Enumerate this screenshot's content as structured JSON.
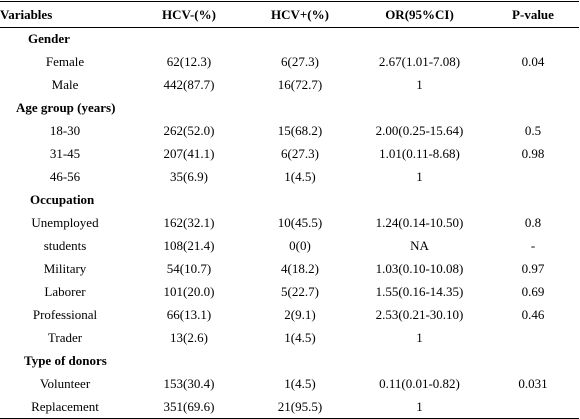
{
  "headers": {
    "variables": "Variables",
    "hcv_neg": "HCV-(%)",
    "hcv_pos": "HCV+(%)",
    "or_ci": "OR(95%CI)",
    "p_value": "P-value"
  },
  "sections": [
    {
      "title": "Gender",
      "rows": [
        {
          "label": "Female",
          "hcv_neg": "62(12.3)",
          "hcv_pos": "6(27.3)",
          "or_ci": "2.67(1.01-7.08)",
          "p": "0.04"
        },
        {
          "label": "Male",
          "hcv_neg": "442(87.7)",
          "hcv_pos": "16(72.7)",
          "or_ci": "1",
          "p": ""
        }
      ]
    },
    {
      "title": "Age group (years)",
      "rows": [
        {
          "label": "18-30",
          "hcv_neg": "262(52.0)",
          "hcv_pos": "15(68.2)",
          "or_ci": "2.00(0.25-15.64)",
          "p": "0.5"
        },
        {
          "label": "31-45",
          "hcv_neg": "207(41.1)",
          "hcv_pos": "6(27.3)",
          "or_ci": "1.01(0.11-8.68)",
          "p": "0.98"
        },
        {
          "label": "46-56",
          "hcv_neg": "35(6.9)",
          "hcv_pos": "1(4.5)",
          "or_ci": "1",
          "p": ""
        }
      ]
    },
    {
      "title": "Occupation",
      "rows": [
        {
          "label": "Unemployed",
          "hcv_neg": "162(32.1)",
          "hcv_pos": "10(45.5)",
          "or_ci": "1.24(0.14-10.50)",
          "p": "0.8"
        },
        {
          "label": "students",
          "hcv_neg": "108(21.4)",
          "hcv_pos": "0(0)",
          "or_ci": "NA",
          "p": "-"
        },
        {
          "label": "Military",
          "hcv_neg": "54(10.7)",
          "hcv_pos": "4(18.2)",
          "or_ci": "1.03(0.10-10.08)",
          "p": "0.97"
        },
        {
          "label": "Laborer",
          "hcv_neg": "101(20.0)",
          "hcv_pos": "5(22.7)",
          "or_ci": "1.55(0.16-14.35)",
          "p": "0.69"
        },
        {
          "label": "Professional",
          "hcv_neg": "66(13.1)",
          "hcv_pos": "2(9.1)",
          "or_ci": "2.53(0.21-30.10)",
          "p": "0.46"
        },
        {
          "label": "Trader",
          "hcv_neg": "13(2.6)",
          "hcv_pos": "1(4.5)",
          "or_ci": "1",
          "p": ""
        }
      ]
    },
    {
      "title": "Type of donors",
      "rows": [
        {
          "label": "Volunteer",
          "hcv_neg": "153(30.4)",
          "hcv_pos": "1(4.5)",
          "or_ci": "0.11(0.01-0.82)",
          "p": "0.031"
        },
        {
          "label": "Replacement",
          "hcv_neg": "351(69.6)",
          "hcv_pos": "21(95.5)",
          "or_ci": "1",
          "p": ""
        }
      ]
    }
  ]
}
